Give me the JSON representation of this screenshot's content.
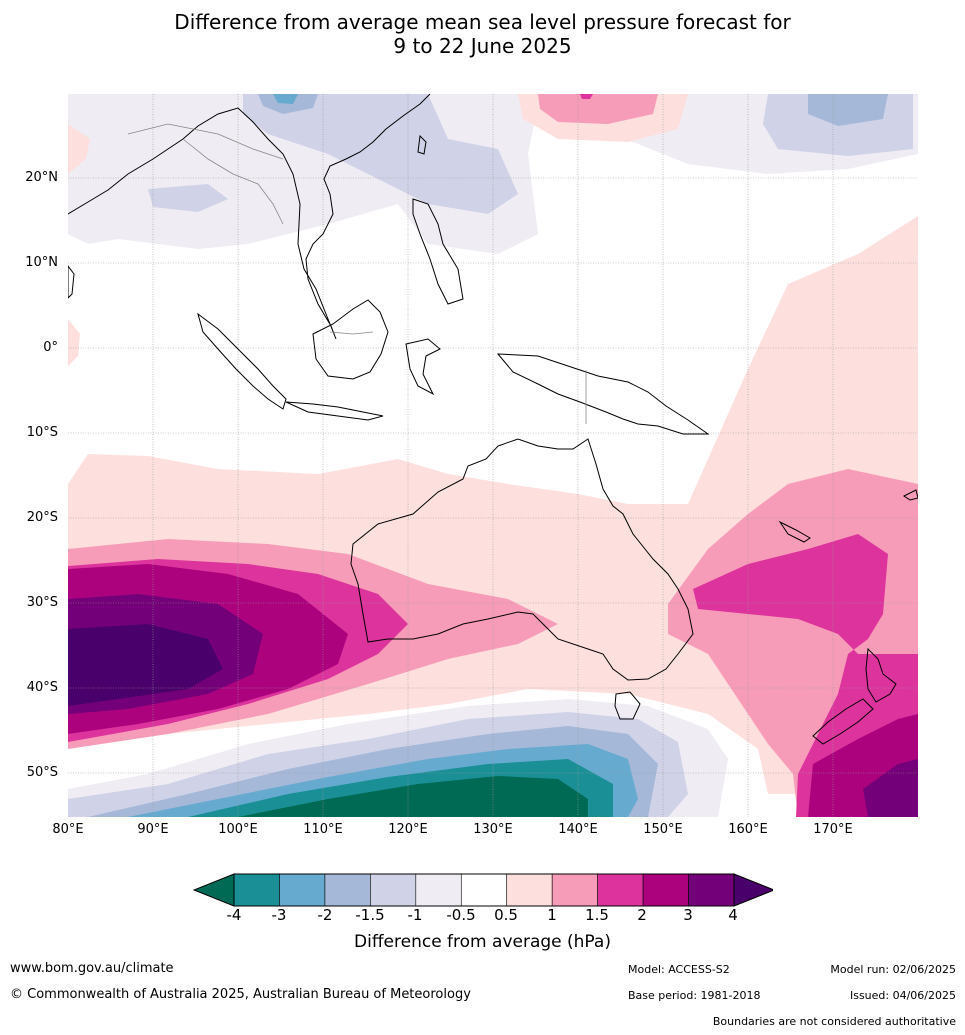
{
  "header": {
    "title_line1": "Difference from average mean sea level pressure forecast for",
    "title_line2": "9 to 22 June 2025"
  },
  "map": {
    "lat_labels": [
      "20°N",
      "10°N",
      "0°",
      "10°S",
      "20°S",
      "30°S",
      "40°S",
      "50°S"
    ],
    "lon_labels": [
      "80°E",
      "90°E",
      "100°E",
      "110°E",
      "120°E",
      "130°E",
      "140°E",
      "150°E",
      "160°E",
      "170°E"
    ]
  },
  "colorbar": {
    "labels": [
      "-4",
      "-3",
      "-2",
      "-1.5",
      "-1",
      "-0.5",
      "0.5",
      "1",
      "1.5",
      "2",
      "3",
      "4"
    ],
    "colors": [
      "#006a55",
      "#1a9096",
      "#66aad0",
      "#a5b8d8",
      "#d0d2e8",
      "#f0ecf3",
      "#ffffff",
      "#fde0de",
      "#f79cb8",
      "#dc349c",
      "#ac027e",
      "#730078",
      "#4a006a"
    ],
    "title": "Difference from average (hPa)"
  },
  "footer": {
    "website": "www.bom.gov.au/climate",
    "copyright": "© Commonwealth of Australia 2025, Australian Bureau of Meteorology",
    "model": "Model: ACCESS-S2",
    "model_run": "Model run: 02/06/2025",
    "base_period": "Base period: 1981-2018",
    "issued": "Issued: 04/06/2025",
    "disclaimer": "Boundaries are not considered authoritative"
  }
}
